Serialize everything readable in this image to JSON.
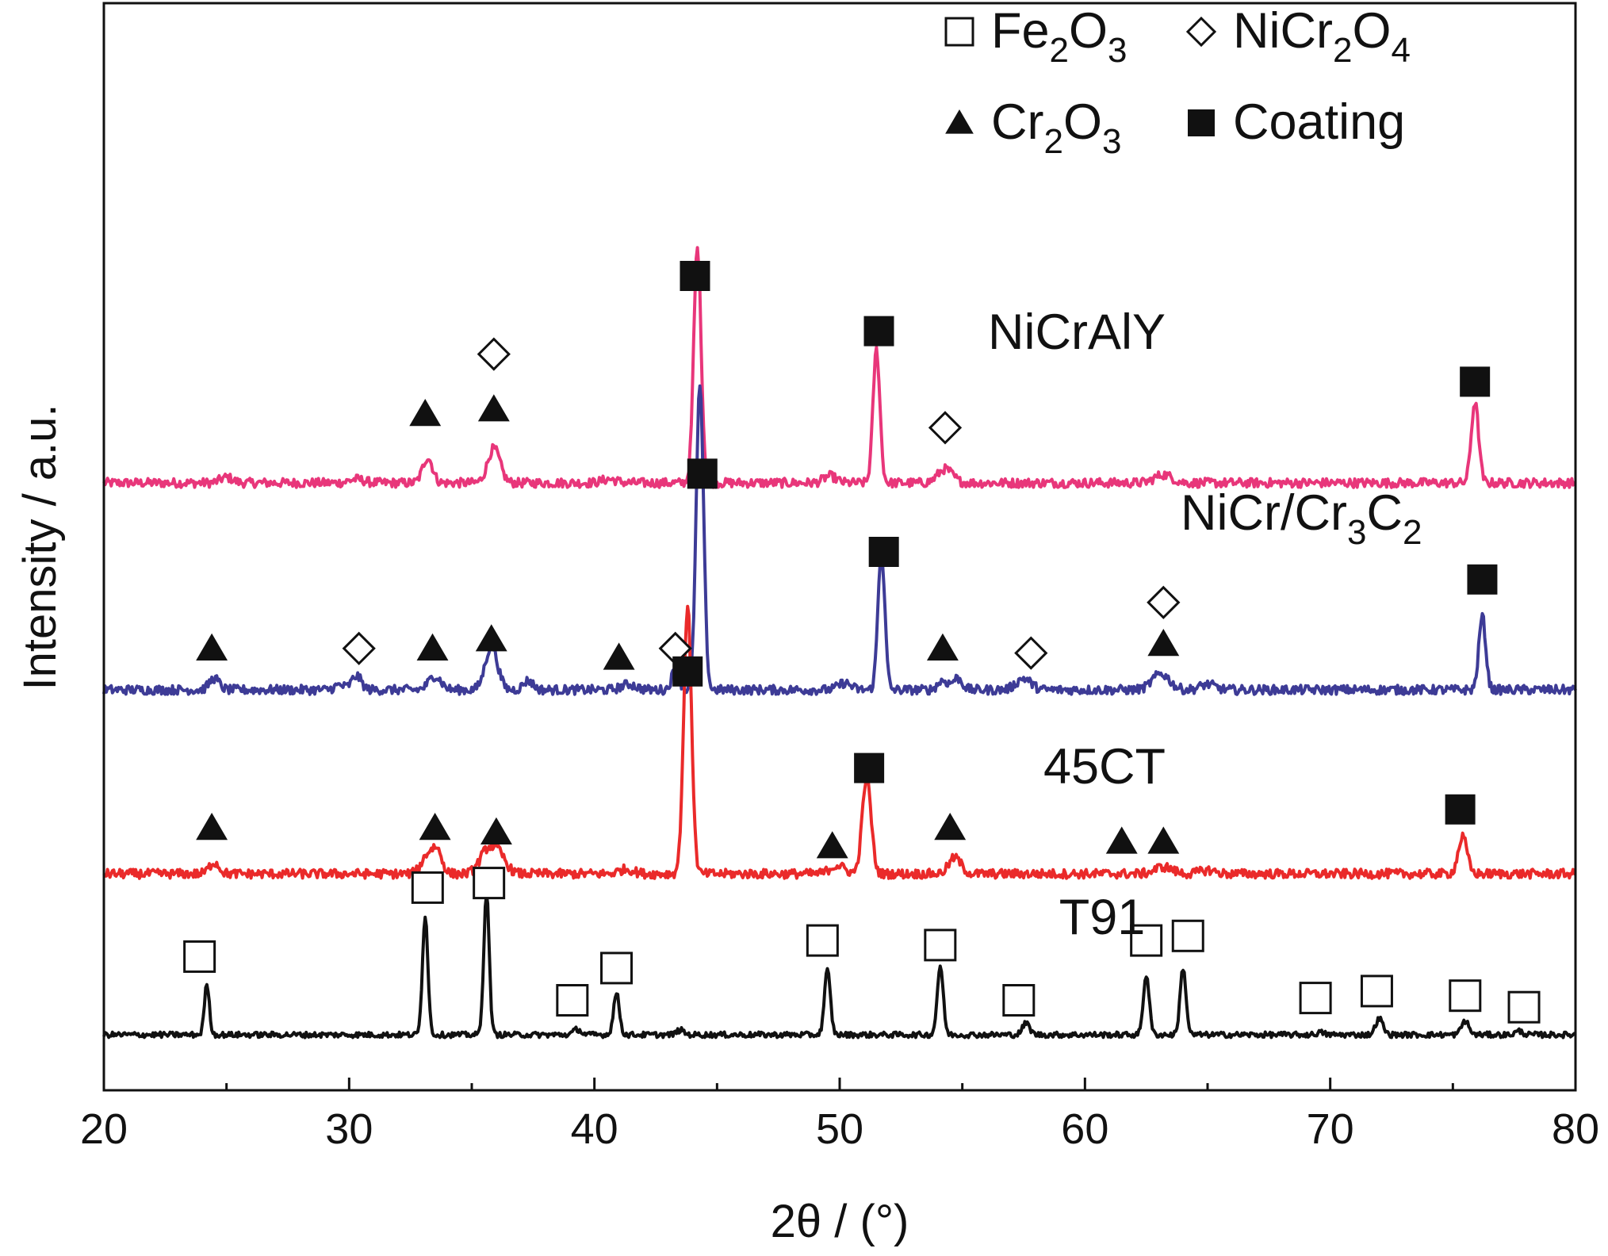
{
  "chart_data": {
    "type": "line",
    "xlabel": "2θ / (°)",
    "ylabel": "Intensity / a.u.",
    "xlim": [
      20,
      80
    ],
    "xticks": [
      20,
      30,
      40,
      50,
      60,
      70,
      80
    ],
    "yticks_shown": false,
    "grid": false,
    "legend": {
      "position": "top-right",
      "entries": [
        {
          "marker": "open-square",
          "label": "Fe2O3",
          "base": "Fe",
          "parts": [
            [
              "2",
              "O"
            ],
            [
              "3",
              ""
            ]
          ]
        },
        {
          "marker": "open-diamond",
          "label": "NiCr2O4",
          "base": "NiCr",
          "parts": [
            [
              "2",
              "O"
            ],
            [
              "4",
              ""
            ]
          ]
        },
        {
          "marker": "filled-triangle",
          "label": "Cr2O3",
          "base": "Cr",
          "parts": [
            [
              "2",
              "O"
            ],
            [
              "3",
              ""
            ]
          ]
        },
        {
          "marker": "filled-square",
          "label": "Coating",
          "base": "Coating",
          "parts": []
        }
      ]
    },
    "series": [
      {
        "name": "NiCrAlY",
        "color": "#e8367a",
        "baseline": 12.0,
        "noise": 0.1,
        "peaks": [
          [
            25,
            0.12,
            0.25
          ],
          [
            30.3,
            0.08,
            0.3
          ],
          [
            33.2,
            0.55,
            0.2
          ],
          [
            35.9,
            0.75,
            0.25
          ],
          [
            40.6,
            0.08,
            0.3
          ],
          [
            44.2,
            5.1,
            0.15
          ],
          [
            49.6,
            0.15,
            0.25
          ],
          [
            51.5,
            2.9,
            0.14
          ],
          [
            54.3,
            0.3,
            0.3
          ],
          [
            63.2,
            0.18,
            0.35
          ],
          [
            75.9,
            1.75,
            0.15
          ]
        ],
        "markers": [
          {
            "type": "filled-triangle",
            "x": 33.1,
            "y": 13.5
          },
          {
            "type": "filled-triangle",
            "x": 35.9,
            "y": 13.6
          },
          {
            "type": "open-diamond",
            "x": 35.9,
            "y": 14.8
          },
          {
            "type": "filled-square",
            "x": 44.1,
            "y": 16.5
          },
          {
            "type": "filled-square",
            "x": 51.6,
            "y": 15.3
          },
          {
            "type": "open-diamond",
            "x": 54.3,
            "y": 13.2
          },
          {
            "type": "filled-square",
            "x": 75.9,
            "y": 14.2
          }
        ]
      },
      {
        "name": "NiCr/Cr3C2",
        "label_base": "NiCr/Cr",
        "label_parts": [
          [
            "3",
            "C"
          ],
          [
            "2",
            ""
          ]
        ],
        "color": "#3d3b96",
        "baseline": 7.5,
        "noise": 0.1,
        "peaks": [
          [
            24.5,
            0.25,
            0.2
          ],
          [
            29.6,
            0.1,
            0.2
          ],
          [
            30.3,
            0.3,
            0.2
          ],
          [
            33.5,
            0.3,
            0.25
          ],
          [
            35.8,
            0.95,
            0.25
          ],
          [
            37.3,
            0.2,
            0.2
          ],
          [
            41.4,
            0.12,
            0.3
          ],
          [
            43.3,
            0.45,
            0.15
          ],
          [
            44.3,
            6.6,
            0.15
          ],
          [
            50.2,
            0.15,
            0.25
          ],
          [
            51.7,
            3.0,
            0.14
          ],
          [
            54.2,
            0.2,
            0.2
          ],
          [
            54.8,
            0.25,
            0.2
          ],
          [
            57.5,
            0.25,
            0.3
          ],
          [
            63.1,
            0.35,
            0.35
          ],
          [
            65.0,
            0.12,
            0.3
          ],
          [
            76.2,
            1.6,
            0.14
          ]
        ],
        "markers": [
          {
            "type": "filled-triangle",
            "x": 24.4,
            "y": 8.4
          },
          {
            "type": "open-diamond",
            "x": 30.4,
            "y": 8.4
          },
          {
            "type": "filled-triangle",
            "x": 33.4,
            "y": 8.4
          },
          {
            "type": "filled-triangle",
            "x": 35.8,
            "y": 8.6
          },
          {
            "type": "filled-triangle",
            "x": 41.0,
            "y": 8.2
          },
          {
            "type": "open-diamond",
            "x": 43.3,
            "y": 8.4
          },
          {
            "type": "filled-square",
            "x": 44.4,
            "y": 12.2
          },
          {
            "type": "filled-square",
            "x": 51.8,
            "y": 10.5
          },
          {
            "type": "filled-triangle",
            "x": 54.2,
            "y": 8.4
          },
          {
            "type": "open-diamond",
            "x": 57.8,
            "y": 8.3
          },
          {
            "type": "open-diamond",
            "x": 63.2,
            "y": 9.4
          },
          {
            "type": "filled-triangle",
            "x": 63.2,
            "y": 8.5
          },
          {
            "type": "filled-square",
            "x": 76.2,
            "y": 9.9
          }
        ]
      },
      {
        "name": "45CT",
        "color": "#ea2a2a",
        "baseline": 3.5,
        "noise": 0.1,
        "peaks": [
          [
            24.5,
            0.25,
            0.2
          ],
          [
            33.2,
            0.4,
            0.25
          ],
          [
            33.6,
            0.45,
            0.2
          ],
          [
            35.6,
            0.45,
            0.3
          ],
          [
            36.1,
            0.4,
            0.3
          ],
          [
            41.3,
            0.1,
            0.3
          ],
          [
            43.8,
            5.8,
            0.16
          ],
          [
            49.9,
            0.18,
            0.3
          ],
          [
            51.1,
            2.1,
            0.18
          ],
          [
            54.7,
            0.35,
            0.25
          ],
          [
            63.2,
            0.15,
            0.35
          ],
          [
            65.0,
            0.08,
            0.3
          ],
          [
            75.4,
            0.8,
            0.18
          ]
        ],
        "markers": [
          {
            "type": "filled-triangle",
            "x": 24.4,
            "y": 4.5
          },
          {
            "type": "filled-triangle",
            "x": 33.5,
            "y": 4.5
          },
          {
            "type": "filled-triangle",
            "x": 36.0,
            "y": 4.4
          },
          {
            "type": "filled-square",
            "x": 43.8,
            "y": 7.9
          },
          {
            "type": "filled-triangle",
            "x": 49.7,
            "y": 4.1
          },
          {
            "type": "filled-square",
            "x": 51.2,
            "y": 5.8
          },
          {
            "type": "filled-triangle",
            "x": 54.5,
            "y": 4.5
          },
          {
            "type": "filled-triangle",
            "x": 61.5,
            "y": 4.2
          },
          {
            "type": "filled-triangle",
            "x": 63.2,
            "y": 4.2
          },
          {
            "type": "filled-square",
            "x": 75.3,
            "y": 4.9
          }
        ]
      },
      {
        "name": "T91",
        "color": "#111111",
        "baseline": 0.0,
        "noise": 0.06,
        "peaks": [
          [
            24.2,
            1.1,
            0.1
          ],
          [
            33.1,
            2.6,
            0.11
          ],
          [
            35.6,
            3.1,
            0.11
          ],
          [
            39.3,
            0.12,
            0.15
          ],
          [
            40.9,
            0.9,
            0.12
          ],
          [
            43.5,
            0.1,
            0.15
          ],
          [
            49.5,
            1.4,
            0.12
          ],
          [
            54.1,
            1.5,
            0.12
          ],
          [
            57.6,
            0.25,
            0.15
          ],
          [
            62.5,
            1.3,
            0.12
          ],
          [
            64.0,
            1.45,
            0.12
          ],
          [
            69.6,
            0.05,
            0.15
          ],
          [
            72.0,
            0.35,
            0.15
          ],
          [
            75.5,
            0.3,
            0.15
          ],
          [
            77.7,
            0.08,
            0.15
          ]
        ],
        "markers": [
          {
            "type": "open-square",
            "x": 23.9,
            "y": 1.7
          },
          {
            "type": "open-square",
            "x": 33.2,
            "y": 3.2
          },
          {
            "type": "open-square",
            "x": 35.7,
            "y": 3.3
          },
          {
            "type": "open-square",
            "x": 39.1,
            "y": 0.75
          },
          {
            "type": "open-square",
            "x": 40.9,
            "y": 1.45
          },
          {
            "type": "open-square",
            "x": 49.3,
            "y": 2.05
          },
          {
            "type": "open-square",
            "x": 54.1,
            "y": 1.95
          },
          {
            "type": "open-square",
            "x": 57.3,
            "y": 0.75
          },
          {
            "type": "open-square",
            "x": 62.5,
            "y": 2.05
          },
          {
            "type": "open-square",
            "x": 64.2,
            "y": 2.15
          },
          {
            "type": "open-square",
            "x": 69.4,
            "y": 0.8
          },
          {
            "type": "open-square",
            "x": 71.9,
            "y": 0.95
          },
          {
            "type": "open-square",
            "x": 75.5,
            "y": 0.85
          },
          {
            "type": "open-square",
            "x": 77.9,
            "y": 0.6
          }
        ]
      }
    ]
  }
}
